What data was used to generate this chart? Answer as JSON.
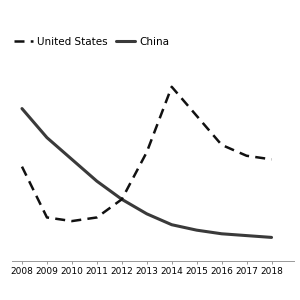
{
  "years": [
    2008,
    2009,
    2010,
    2011,
    2012,
    2013,
    2014,
    2015,
    2016,
    2017,
    2018
  ],
  "china": [
    0.52,
    0.44,
    0.38,
    0.32,
    0.27,
    0.23,
    0.2,
    0.185,
    0.175,
    0.17,
    0.165
  ],
  "us": [
    0.36,
    0.22,
    0.21,
    0.22,
    0.27,
    0.4,
    0.58,
    0.5,
    0.42,
    0.39,
    0.38
  ],
  "china_color": "#3a3a3a",
  "us_color": "#111111",
  "bg_color": "#ffffff",
  "ylim": [
    0.1,
    0.72
  ],
  "xlim": [
    2007.6,
    2018.9
  ],
  "legend_us": "United States",
  "legend_china": "China",
  "tick_fontsize": 6.5,
  "legend_fontsize": 7.5,
  "grid_color": "#d0d0d0",
  "grid_linewidth": 0.6,
  "line_linewidth_china": 2.2,
  "line_linewidth_us": 1.8
}
